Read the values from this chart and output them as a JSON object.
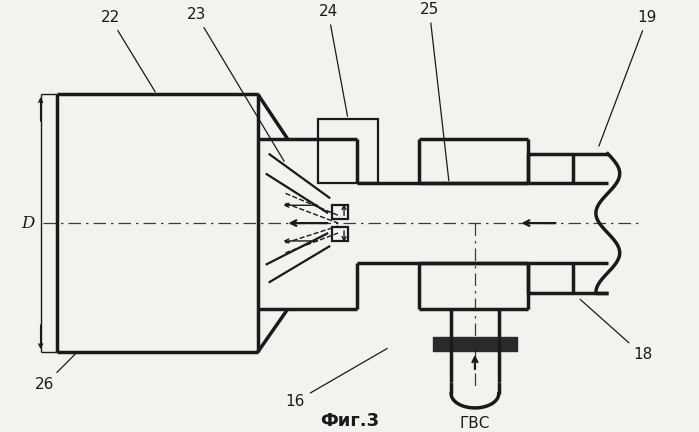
{
  "bg_color": "#f2f2ee",
  "line_color": "#1a1a1a",
  "title": "Фиг.3",
  "figsize": [
    6.99,
    4.32
  ],
  "dpi": 100,
  "lw_thick": 2.5,
  "lw_med": 1.6,
  "lw_thin": 1.0
}
